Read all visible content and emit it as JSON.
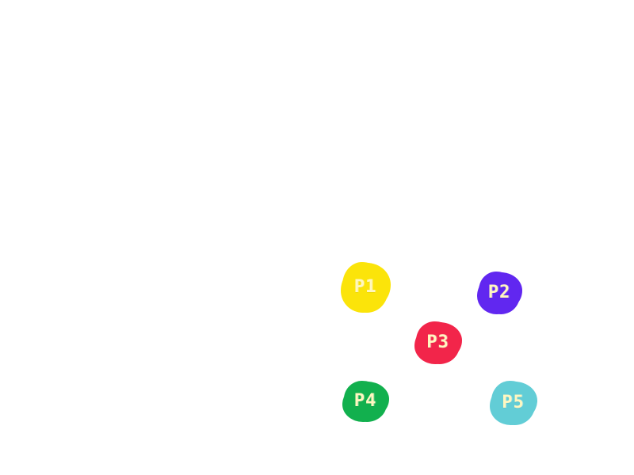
{
  "players": [
    {
      "id": "p1",
      "label": "P1",
      "color": "#fbe40a"
    },
    {
      "id": "p2",
      "label": "P2",
      "color": "#6127f0"
    },
    {
      "id": "p3",
      "label": "P3",
      "color": "#f2254a"
    },
    {
      "id": "p4",
      "label": "P4",
      "color": "#12b04e"
    },
    {
      "id": "p5",
      "label": "P5",
      "color": "#62cdd6"
    }
  ]
}
